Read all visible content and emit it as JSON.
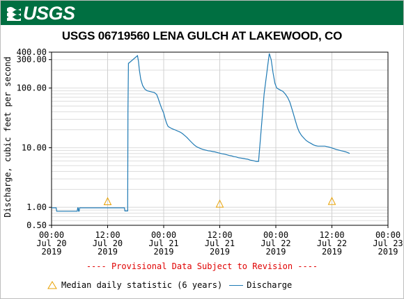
{
  "header": {
    "logo_text": "USGS",
    "brand_color": "#006f41"
  },
  "chart_title": "USGS 06719560 LENA GULCH AT LAKEWOOD, CO",
  "footer": {
    "provisional_notice": "---- Provisional Data Subject to Revision ----"
  },
  "chart_data": {
    "type": "line",
    "title": "USGS 06719560 LENA GULCH AT LAKEWOOD, CO",
    "ylabel": "Discharge, cubic feet per second",
    "xlabel": "",
    "y_scale": "log",
    "ylim": [
      0.5,
      400
    ],
    "xlim_hours": [
      0,
      72
    ],
    "grid": true,
    "legend_position": "bottom",
    "y_ticks": [
      {
        "value": 0.5,
        "label": "0.50"
      },
      {
        "value": 1,
        "label": "1.00"
      },
      {
        "value": 10,
        "label": "10.00"
      },
      {
        "value": 100,
        "label": "100.00"
      },
      {
        "value": 300,
        "label": "300.00"
      },
      {
        "value": 400,
        "label": "400.00"
      }
    ],
    "x_ticks": [
      {
        "hour": 0,
        "lines": [
          "00:00",
          "Jul 20",
          "2019"
        ]
      },
      {
        "hour": 12,
        "lines": [
          "12:00",
          "Jul 20",
          "2019"
        ]
      },
      {
        "hour": 24,
        "lines": [
          "00:00",
          "Jul 21",
          "2019"
        ]
      },
      {
        "hour": 36,
        "lines": [
          "12:00",
          "Jul 21",
          "2019"
        ]
      },
      {
        "hour": 48,
        "lines": [
          "00:00",
          "Jul 22",
          "2019"
        ]
      },
      {
        "hour": 60,
        "lines": [
          "12:00",
          "Jul 22",
          "2019"
        ]
      },
      {
        "hour": 72,
        "lines": [
          "00:00",
          "Jul 23",
          "2019"
        ]
      }
    ],
    "series": [
      {
        "name": "Discharge",
        "color": "#1f7ab4",
        "points": [
          [
            0,
            0.98
          ],
          [
            0.1,
            0.98
          ],
          [
            0.2,
            0.98
          ],
          [
            0.3,
            0.98
          ],
          [
            0.4,
            0.98
          ],
          [
            0.5,
            0.98
          ],
          [
            0.6,
            0.98
          ],
          [
            0.7,
            0.98
          ],
          [
            0.8,
            0.98
          ],
          [
            0.9,
            0.98
          ],
          [
            1.0,
            0.98
          ],
          [
            1.1,
            0.86
          ],
          [
            5.5,
            0.86
          ],
          [
            5.6,
            0.98
          ],
          [
            5.7,
            0.98
          ],
          [
            5.8,
            0.86
          ],
          [
            5.9,
            0.86
          ],
          [
            6.0,
            0.98
          ],
          [
            7,
            0.98
          ],
          [
            8,
            0.98
          ],
          [
            9,
            0.98
          ],
          [
            10,
            0.98
          ],
          [
            11,
            0.98
          ],
          [
            12,
            0.98
          ],
          [
            13,
            0.98
          ],
          [
            14,
            0.98
          ],
          [
            15,
            0.98
          ],
          [
            15.6,
            0.98
          ],
          [
            15.7,
            0.87
          ],
          [
            16.3,
            0.87
          ],
          [
            16.35,
            40
          ],
          [
            16.45,
            260
          ],
          [
            16.5,
            260
          ],
          [
            18.4,
            350
          ],
          [
            18.6,
            280
          ],
          [
            18.8,
            200
          ],
          [
            19.1,
            140
          ],
          [
            19.5,
            110
          ],
          [
            20,
            95
          ],
          [
            20.5,
            90
          ],
          [
            21,
            88
          ],
          [
            21.5,
            86
          ],
          [
            22,
            84
          ],
          [
            22.5,
            78
          ],
          [
            22.8,
            68
          ],
          [
            23.2,
            55
          ],
          [
            23.6,
            45
          ],
          [
            24,
            38
          ],
          [
            24.3,
            31
          ],
          [
            24.6,
            26
          ],
          [
            24.9,
            23
          ],
          [
            25.2,
            22
          ],
          [
            25.6,
            21.2
          ],
          [
            26,
            20.5
          ],
          [
            26.5,
            19.8
          ],
          [
            27,
            19
          ],
          [
            27.5,
            18.3
          ],
          [
            28,
            17.3
          ],
          [
            28.5,
            16
          ],
          [
            29,
            14.8
          ],
          [
            29.5,
            13.4
          ],
          [
            30,
            12.2
          ],
          [
            30.5,
            11.2
          ],
          [
            31,
            10.4
          ],
          [
            31.5,
            10
          ],
          [
            32,
            9.6
          ],
          [
            32.5,
            9.3
          ],
          [
            33,
            9.1
          ],
          [
            33.5,
            8.9
          ],
          [
            34,
            8.8
          ],
          [
            34.5,
            8.6
          ],
          [
            35,
            8.5
          ],
          [
            35.5,
            8.3
          ],
          [
            36,
            8.1
          ],
          [
            36.5,
            7.9
          ],
          [
            37,
            7.8
          ],
          [
            37.5,
            7.6
          ],
          [
            38,
            7.4
          ],
          [
            38.5,
            7.3
          ],
          [
            39,
            7.1
          ],
          [
            39.5,
            7.0
          ],
          [
            40,
            6.8
          ],
          [
            40.5,
            6.7
          ],
          [
            41,
            6.6
          ],
          [
            41.5,
            6.5
          ],
          [
            42,
            6.4
          ],
          [
            42.5,
            6.2
          ],
          [
            43,
            6.1
          ],
          [
            43.4,
            6.0
          ],
          [
            43.8,
            5.9
          ],
          [
            44.1,
            5.9
          ],
          [
            44.3,
            5.9
          ],
          [
            45.5,
            80
          ],
          [
            46.3,
            250
          ],
          [
            46.6,
            380
          ],
          [
            47,
            300
          ],
          [
            47.4,
            180
          ],
          [
            47.8,
            120
          ],
          [
            48.2,
            100
          ],
          [
            48.6,
            96
          ],
          [
            49,
            92
          ],
          [
            49.5,
            88
          ],
          [
            50,
            80
          ],
          [
            50.5,
            70
          ],
          [
            51,
            58
          ],
          [
            51.4,
            46
          ],
          [
            51.8,
            36
          ],
          [
            52.2,
            28
          ],
          [
            52.6,
            22
          ],
          [
            53,
            18.5
          ],
          [
            53.5,
            16
          ],
          [
            54,
            14.5
          ],
          [
            54.5,
            13.2
          ],
          [
            55,
            12.4
          ],
          [
            55.5,
            11.8
          ],
          [
            56,
            11.2
          ],
          [
            56.5,
            10.8
          ],
          [
            57,
            10.6
          ],
          [
            57.5,
            10.6
          ],
          [
            58,
            10.6
          ],
          [
            58.5,
            10.6
          ],
          [
            59,
            10.4
          ],
          [
            59.5,
            10.2
          ],
          [
            60,
            9.9
          ],
          [
            60.5,
            9.6
          ],
          [
            61,
            9.3
          ],
          [
            61.5,
            9.1
          ],
          [
            62,
            8.9
          ],
          [
            62.5,
            8.7
          ],
          [
            63,
            8.5
          ],
          [
            63.5,
            8.2
          ],
          [
            63.8,
            8.0
          ]
        ]
      },
      {
        "name": "Median daily statistic (6 years)",
        "color": "#e8a000",
        "marker": "triangle",
        "points": [
          [
            12,
            1.23
          ],
          [
            36,
            1.12
          ],
          [
            60,
            1.24
          ]
        ]
      }
    ]
  }
}
